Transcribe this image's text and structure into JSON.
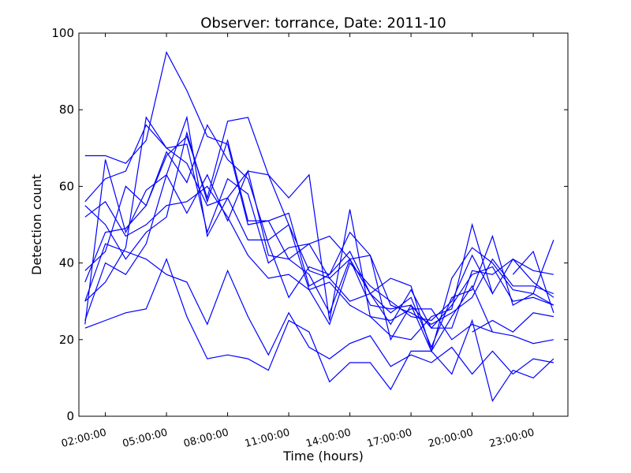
{
  "chart_data": {
    "type": "line",
    "title": "Observer: torrance, Date: 2011-10",
    "xlabel": "Time (hours)",
    "ylabel": "Detection count",
    "ylim": [
      0,
      100
    ],
    "xlim": [
      0.7,
      24.7
    ],
    "yticks": [
      0,
      20,
      40,
      60,
      80,
      100
    ],
    "x_ticks": [
      {
        "value": 2,
        "label": "02:00:00"
      },
      {
        "value": 5,
        "label": "05:00:00"
      },
      {
        "value": 8,
        "label": "08:00:00"
      },
      {
        "value": 11,
        "label": "11:00:00"
      },
      {
        "value": 14,
        "label": "14:00:00"
      },
      {
        "value": 17,
        "label": "17:00:00"
      },
      {
        "value": 20,
        "label": "20:00:00"
      },
      {
        "value": 23,
        "label": "23:00:00"
      }
    ],
    "grid": false,
    "line_color": "#0000ff",
    "x": [
      1,
      2,
      3,
      4,
      5,
      6,
      7,
      8,
      9,
      10,
      11,
      12,
      13,
      14,
      15,
      16,
      17,
      18,
      19,
      20,
      21,
      22,
      23,
      24
    ],
    "series": [
      {
        "values": [
          68,
          68,
          66,
          72,
          95,
          85,
          73,
          71,
          50,
          51,
          41,
          45,
          36,
          41,
          42,
          20,
          29,
          17,
          26,
          34,
          22,
          null,
          null,
          null
        ]
      },
      {
        "values": [
          55,
          50,
          41,
          48,
          52,
          74,
          56,
          72,
          51,
          51,
          53,
          34,
          37,
          48,
          42,
          29,
          27,
          24,
          27,
          31,
          41,
          34,
          34,
          32
        ]
      },
      {
        "values": [
          35,
          48,
          49,
          55,
          68,
          73,
          57,
          77,
          78,
          63,
          57,
          63,
          25,
          54,
          26,
          21,
          20,
          26,
          28,
          50,
          32,
          41,
          38,
          37
        ]
      },
      {
        "values": [
          24,
          67,
          48,
          59,
          63,
          53,
          63,
          51,
          64,
          42,
          41,
          37,
          27,
          41,
          29,
          28,
          29,
          23,
          23,
          38,
          37,
          41,
          35,
          31
        ]
      },
      {
        "values": [
          56,
          62,
          64,
          76,
          70,
          71,
          48,
          62,
          58,
          40,
          44,
          45,
          47,
          41,
          32,
          24,
          33,
          23,
          29,
          37,
          39,
          30,
          31,
          29
        ]
      },
      {
        "values": [
          38,
          43,
          60,
          55,
          69,
          61,
          76,
          67,
          62,
          45,
          31,
          39,
          37,
          43,
          32,
          36,
          34,
          17,
          36,
          44,
          40,
          33,
          32,
          46
        ]
      },
      {
        "values": [
          30,
          35,
          44,
          78,
          70,
          66,
          55,
          57,
          46,
          46,
          50,
          38,
          36,
          30,
          32,
          27,
          31,
          18,
          31,
          33,
          47,
          29,
          32,
          29
        ]
      },
      {
        "values": [
          25,
          40,
          37,
          45,
          63,
          78,
          47,
          57,
          64,
          63,
          50,
          33,
          24,
          40,
          34,
          30,
          26,
          25,
          30,
          42,
          32,
          null,
          null,
          null
        ]
      },
      {
        "values": [
          23,
          25,
          27,
          28,
          41,
          26,
          15,
          16,
          15,
          12,
          25,
          22,
          9,
          14,
          14,
          7,
          17,
          17,
          11,
          25,
          4,
          12,
          10,
          15
        ]
      },
      {
        "values": [
          30,
          45,
          43,
          41,
          37,
          35,
          24,
          38,
          26,
          16,
          27,
          18,
          15,
          19,
          21,
          13,
          16,
          14,
          18,
          11,
          17,
          11,
          15,
          14
        ]
      },
      {
        "values": [
          52,
          56,
          47,
          50,
          55,
          56,
          60,
          52,
          42,
          36,
          37,
          33,
          35,
          29,
          26,
          25,
          28,
          28,
          20,
          24,
          22,
          21,
          19,
          20
        ]
      },
      {
        "values": [
          null,
          null,
          null,
          null,
          null,
          null,
          null,
          null,
          null,
          null,
          null,
          null,
          null,
          null,
          null,
          null,
          null,
          null,
          null,
          null,
          null,
          37,
          43,
          27
        ]
      },
      {
        "values": [
          null,
          null,
          null,
          null,
          null,
          null,
          null,
          null,
          null,
          null,
          null,
          null,
          null,
          null,
          null,
          null,
          null,
          null,
          null,
          22,
          25,
          22,
          27,
          26
        ]
      }
    ]
  }
}
